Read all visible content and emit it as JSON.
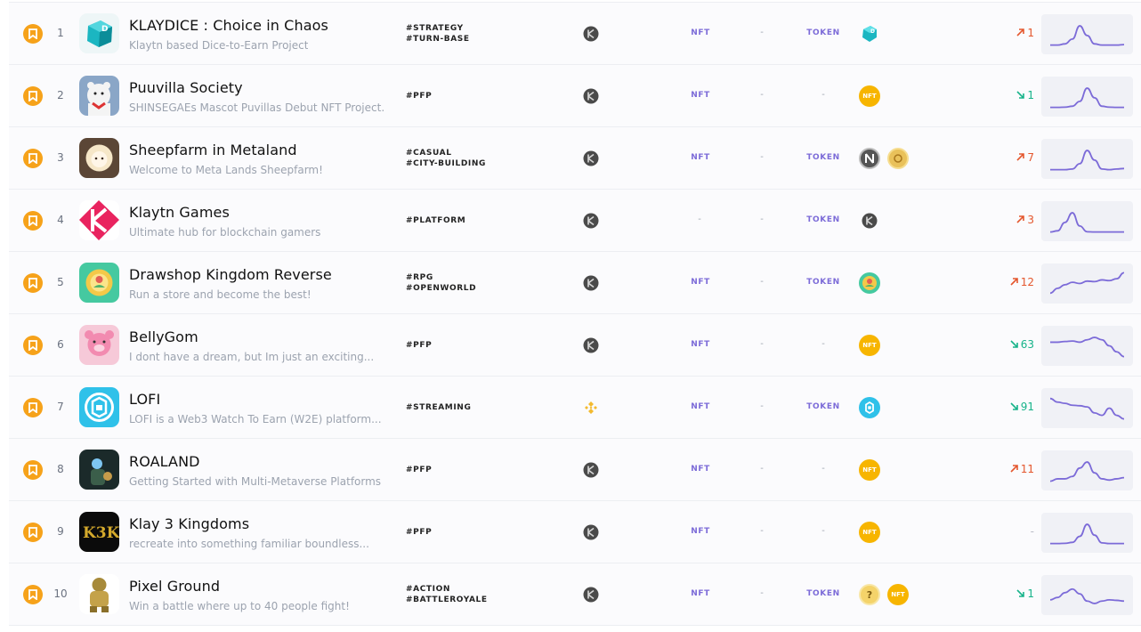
{
  "rows": [
    {
      "rank": "1",
      "title": "KLAYDICE : Choice in Chaos",
      "subtitle": "Klaytn based Dice-to-Earn Project",
      "tags": [
        "#STRATEGY",
        "#TURN-BASE"
      ],
      "chain": "klaytn-icon",
      "nft": "NFT",
      "market": "-",
      "token": "TOKEN",
      "token_icons": [
        "dice-token-icon"
      ],
      "change": "1",
      "direction": "up",
      "spark": [
        0.05,
        0.05,
        0.1,
        0.3,
        0.85,
        0.45,
        0.1,
        0.05,
        0.05,
        0.05,
        0.07
      ]
    },
    {
      "rank": "2",
      "title": "Puuvilla Society",
      "subtitle": "SHINSEGAEs Mascot Puvillas Debut NFT Project.",
      "tags": [
        "#PFP"
      ],
      "chain": "klaytn-icon",
      "nft": "NFT",
      "market": "-",
      "token": "-",
      "token_icons": [
        "nft-coin-icon"
      ],
      "change": "1",
      "direction": "down",
      "spark": [
        0.05,
        0.05,
        0.06,
        0.1,
        0.3,
        0.85,
        0.45,
        0.1,
        0.06,
        0.05,
        0.05
      ]
    },
    {
      "rank": "3",
      "title": "Sheepfarm in Metaland",
      "subtitle": "Welcome to Meta Lands Sheepfarm!",
      "tags": [
        "#CASUAL",
        "#CITY-BUILDING"
      ],
      "chain": "klaytn-icon",
      "nft": "NFT",
      "market": "-",
      "token": "TOKEN",
      "token_icons": [
        "napa-token-icon",
        "gold-token-icon"
      ],
      "change": "7",
      "direction": "up",
      "spark": [
        0.05,
        0.05,
        0.05,
        0.08,
        0.3,
        0.85,
        0.45,
        0.08,
        0.05,
        0.08,
        0.1
      ]
    },
    {
      "rank": "4",
      "title": "Klaytn Games",
      "subtitle": "Ultimate hub for blockchain gamers",
      "tags": [
        "#PLATFORM"
      ],
      "chain": "klaytn-icon",
      "nft": "-",
      "market": "-",
      "token": "TOKEN",
      "token_icons": [
        "klaytn-token-icon"
      ],
      "change": "3",
      "direction": "up",
      "spark": [
        0.05,
        0.1,
        0.45,
        0.85,
        0.3,
        0.06,
        0.05,
        0.05,
        0.05,
        0.05,
        0.05
      ]
    },
    {
      "rank": "5",
      "title": "Drawshop Kingdom Reverse",
      "subtitle": "Run a store and become the best!",
      "tags": [
        "#RPG",
        "#OPENWORLD"
      ],
      "chain": "klaytn-icon",
      "nft": "NFT",
      "market": "-",
      "token": "TOKEN",
      "token_icons": [
        "drawshop-token-icon"
      ],
      "change": "12",
      "direction": "up",
      "spark": [
        0.1,
        0.3,
        0.45,
        0.55,
        0.5,
        0.6,
        0.58,
        0.65,
        0.62,
        0.7,
        0.95
      ]
    },
    {
      "rank": "6",
      "title": "BellyGom",
      "subtitle": "I dont have a dream, but Im just an exciting...",
      "tags": [
        "#PFP"
      ],
      "chain": "klaytn-icon",
      "nft": "NFT",
      "market": "-",
      "token": "-",
      "token_icons": [
        "nft-coin-icon"
      ],
      "change": "63",
      "direction": "down",
      "spark": [
        0.65,
        0.65,
        0.68,
        0.7,
        0.65,
        0.75,
        0.85,
        0.75,
        0.5,
        0.25,
        0.05
      ]
    },
    {
      "rank": "7",
      "title": "LOFI",
      "subtitle": "LOFI is a Web3 Watch To Earn (W2E) platform...",
      "tags": [
        "#STREAMING"
      ],
      "chain": "bnb-icon",
      "nft": "NFT",
      "market": "-",
      "token": "TOKEN",
      "token_icons": [
        "lofi-token-icon"
      ],
      "change": "91",
      "direction": "down",
      "spark": [
        0.9,
        0.75,
        0.7,
        0.62,
        0.6,
        0.55,
        0.3,
        0.2,
        0.5,
        0.2,
        0.05
      ]
    },
    {
      "rank": "8",
      "title": "ROALAND",
      "subtitle": "Getting Started with Multi-Metaverse Platforms",
      "tags": [
        "#PFP"
      ],
      "chain": "klaytn-icon",
      "nft": "NFT",
      "market": "-",
      "token": "-",
      "token_icons": [
        "nft-coin-icon"
      ],
      "change": "11",
      "direction": "up",
      "spark": [
        0.05,
        0.15,
        0.15,
        0.25,
        0.6,
        0.85,
        0.4,
        0.15,
        0.1,
        0.15,
        0.2
      ]
    },
    {
      "rank": "9",
      "title": "Klay 3 Kingdoms",
      "subtitle": "recreate into something familiar boundless...",
      "tags": [
        "#PFP"
      ],
      "chain": "klaytn-icon",
      "nft": "NFT",
      "market": "-",
      "token": "-",
      "token_icons": [
        "nft-coin-icon"
      ],
      "change": "-",
      "direction": "flat",
      "spark": [
        0.05,
        0.05,
        0.06,
        0.1,
        0.35,
        0.85,
        0.4,
        0.08,
        0.05,
        0.05,
        0.05
      ]
    },
    {
      "rank": "10",
      "title": "Pixel Ground",
      "subtitle": "Win a battle where up to 40 people fight!",
      "tags": [
        "#ACTION",
        "#BATTLEROYALE"
      ],
      "chain": "klaytn-icon",
      "nft": "NFT",
      "market": "-",
      "token": "TOKEN",
      "token_icons": [
        "unknown-token-icon",
        "nft-coin-icon"
      ],
      "change": "1",
      "direction": "down",
      "spark": [
        0.3,
        0.4,
        0.6,
        0.75,
        0.55,
        0.25,
        0.15,
        0.25,
        0.3,
        0.28,
        0.25
      ]
    }
  ],
  "colors": {
    "accent": "#7c6bd8",
    "up": "#e4572e",
    "down": "#17b38a",
    "bookmark": "#f6a21a",
    "nft_coin": "#f7b500"
  }
}
